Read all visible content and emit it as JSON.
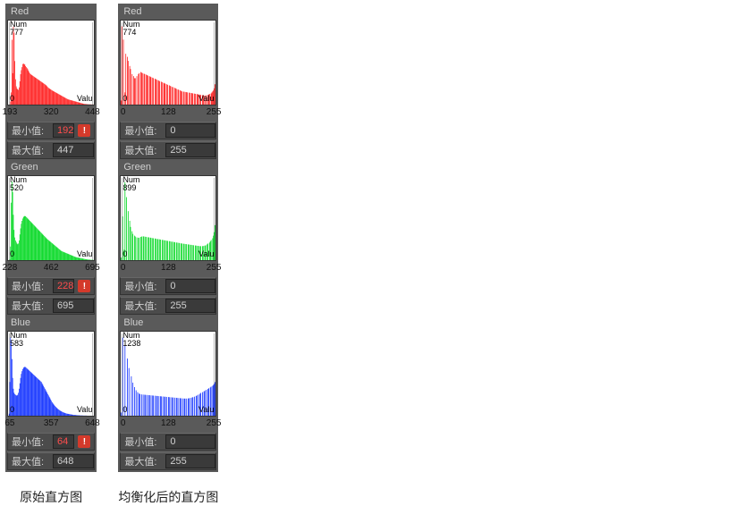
{
  "captions": {
    "left": "原始直方图",
    "right": "均衡化后的直方图"
  },
  "labels": {
    "min": "最小值:",
    "max": "最大值:",
    "yNum": "Num",
    "xValu": "Valu",
    "zero": "0"
  },
  "colors": {
    "panel_bg": "#5a5a5a",
    "row_bg": "#4b4b4b",
    "input_bg": "#3a3a3a",
    "text": "#d0d0d0",
    "warn_text": "#ff4d4d",
    "warn_icon": "#d43a2b",
    "hist_bg": "#ffffff",
    "red": "#ff1e1e",
    "green": "#00d820",
    "blue": "#1030ff"
  },
  "left": {
    "channels": [
      {
        "name": "Red",
        "color": "#ff1e1e",
        "yMax": 777,
        "ticks": [
          "193",
          "320",
          "448"
        ],
        "min": "192",
        "max": "447",
        "minWarn": true,
        "bars": [
          0,
          0,
          0,
          30,
          120,
          640,
          310,
          770,
          710,
          430,
          250,
          180,
          160,
          150,
          145,
          170,
          230,
          300,
          340,
          370,
          400,
          405,
          400,
          395,
          380,
          370,
          360,
          350,
          335,
          320,
          308,
          300,
          295,
          290,
          285,
          280,
          275,
          270,
          265,
          260,
          255,
          250,
          245,
          240,
          235,
          230,
          225,
          220,
          215,
          210,
          205,
          200,
          195,
          188,
          180,
          172,
          165,
          160,
          155,
          150,
          145,
          140,
          136,
          132,
          128,
          124,
          120,
          116,
          112,
          108,
          104,
          100,
          96,
          92,
          88,
          84,
          80,
          76,
          72,
          68,
          64,
          60,
          56,
          52,
          50,
          48,
          46,
          44,
          42,
          40,
          38,
          36,
          34,
          32,
          30,
          28,
          26,
          24,
          22,
          20,
          18,
          16,
          14,
          12,
          10,
          8,
          7,
          6,
          5,
          4,
          4,
          3,
          3,
          2,
          2,
          2,
          1,
          1,
          1,
          1
        ]
      },
      {
        "name": "Green",
        "color": "#00d820",
        "yMax": 520,
        "ticks": [
          "228",
          "462",
          "695"
        ],
        "min": "228",
        "max": "695",
        "minWarn": true,
        "bars": [
          0,
          0,
          5,
          90,
          380,
          520,
          450,
          300,
          200,
          150,
          130,
          120,
          110,
          105,
          110,
          130,
          170,
          210,
          240,
          260,
          275,
          285,
          290,
          292,
          290,
          285,
          280,
          275,
          270,
          265,
          260,
          255,
          250,
          245,
          240,
          235,
          230,
          225,
          220,
          215,
          210,
          205,
          200,
          195,
          190,
          185,
          180,
          175,
          170,
          165,
          160,
          155,
          150,
          145,
          140,
          136,
          132,
          128,
          124,
          120,
          116,
          112,
          108,
          104,
          100,
          96,
          92,
          88,
          84,
          80,
          76,
          72,
          68,
          64,
          60,
          58,
          56,
          54,
          52,
          50,
          48,
          46,
          44,
          42,
          40,
          38,
          36,
          34,
          32,
          30,
          28,
          26,
          24,
          22,
          20,
          19,
          18,
          17,
          16,
          15,
          14,
          13,
          12,
          11,
          10,
          9,
          8,
          7,
          6,
          5,
          5,
          4,
          4,
          3,
          3,
          2,
          2,
          2,
          1,
          1
        ]
      },
      {
        "name": "Blue",
        "color": "#1030ff",
        "yMax": 583,
        "ticks": [
          "65",
          "357",
          "648"
        ],
        "min": "64",
        "max": "648",
        "minWarn": true,
        "bars": [
          0,
          15,
          250,
          580,
          560,
          420,
          280,
          200,
          170,
          160,
          155,
          150,
          150,
          155,
          170,
          200,
          240,
          280,
          310,
          330,
          345,
          355,
          360,
          362,
          360,
          355,
          350,
          345,
          340,
          335,
          330,
          325,
          320,
          315,
          310,
          305,
          300,
          295,
          290,
          285,
          280,
          275,
          270,
          265,
          260,
          255,
          250,
          240,
          230,
          220,
          210,
          200,
          190,
          180,
          170,
          160,
          150,
          140,
          130,
          120,
          110,
          100,
          92,
          85,
          78,
          72,
          66,
          60,
          55,
          50,
          46,
          42,
          38,
          35,
          32,
          29,
          26,
          24,
          22,
          20,
          18,
          16,
          15,
          14,
          13,
          12,
          11,
          10,
          9,
          8,
          7,
          6,
          6,
          5,
          5,
          4,
          4,
          3,
          3,
          3,
          2,
          2,
          2,
          2,
          1,
          1,
          1,
          1,
          1,
          1,
          0,
          0,
          0,
          0,
          0,
          0,
          0,
          0,
          0,
          0
        ]
      }
    ]
  },
  "right": {
    "channels": [
      {
        "name": "Red",
        "color": "#ff1e1e",
        "yMax": 774,
        "ticks": [
          "0",
          "128",
          "255"
        ],
        "min": "0",
        "max": "255",
        "minWarn": false,
        "bars": [
          40,
          770,
          0,
          640,
          0,
          120,
          500,
          0,
          470,
          430,
          0,
          380,
          350,
          0,
          300,
          0,
          280,
          260,
          260,
          0,
          280,
          0,
          300,
          310,
          0,
          320,
          315,
          310,
          0,
          305,
          300,
          0,
          295,
          290,
          285,
          0,
          280,
          275,
          270,
          0,
          265,
          260,
          0,
          255,
          250,
          245,
          0,
          240,
          235,
          230,
          0,
          225,
          220,
          0,
          215,
          210,
          205,
          0,
          200,
          195,
          0,
          190,
          185,
          180,
          0,
          175,
          170,
          0,
          165,
          160,
          155,
          0,
          150,
          145,
          0,
          140,
          135,
          130,
          0,
          128,
          126,
          0,
          124,
          122,
          120,
          0,
          118,
          116,
          0,
          114,
          112,
          110,
          0,
          108,
          106,
          0,
          104,
          102,
          100,
          0,
          98,
          96,
          0,
          94,
          92,
          90,
          0,
          90,
          92,
          0,
          95,
          100,
          105,
          0,
          110,
          120,
          130,
          140,
          160,
          200
        ]
      },
      {
        "name": "Green",
        "color": "#00d820",
        "yMax": 899,
        "ticks": [
          "0",
          "128",
          "255"
        ],
        "min": "0",
        "max": "255",
        "minWarn": false,
        "bars": [
          30,
          0,
          500,
          0,
          120,
          890,
          0,
          720,
          0,
          560,
          0,
          450,
          380,
          0,
          330,
          300,
          0,
          280,
          270,
          0,
          260,
          0,
          255,
          258,
          0,
          265,
          270,
          0,
          272,
          270,
          0,
          268,
          265,
          0,
          262,
          260,
          0,
          258,
          255,
          0,
          252,
          250,
          0,
          248,
          245,
          0,
          242,
          240,
          0,
          238,
          235,
          0,
          232,
          230,
          0,
          228,
          225,
          0,
          222,
          220,
          0,
          218,
          215,
          0,
          212,
          210,
          0,
          208,
          205,
          0,
          202,
          200,
          0,
          198,
          195,
          0,
          192,
          190,
          0,
          188,
          186,
          0,
          184,
          182,
          0,
          180,
          178,
          0,
          176,
          174,
          0,
          172,
          170,
          0,
          168,
          166,
          0,
          164,
          162,
          0,
          160,
          160,
          0,
          160,
          162,
          0,
          165,
          170,
          0,
          180,
          190,
          0,
          200,
          215,
          230,
          0,
          250,
          280,
          320,
          400
        ]
      },
      {
        "name": "Blue",
        "color": "#1030ff",
        "yMax": 1238,
        "ticks": [
          "0",
          "128",
          "255"
        ],
        "min": "0",
        "max": "255",
        "minWarn": false,
        "bars": [
          50,
          0,
          1230,
          0,
          0,
          1100,
          0,
          0,
          900,
          0,
          750,
          0,
          0,
          620,
          0,
          520,
          0,
          450,
          0,
          400,
          0,
          370,
          0,
          350,
          340,
          0,
          335,
          0,
          332,
          0,
          330,
          328,
          0,
          326,
          0,
          324,
          322,
          0,
          320,
          0,
          318,
          316,
          0,
          314,
          0,
          312,
          310,
          0,
          308,
          0,
          306,
          304,
          0,
          302,
          0,
          300,
          298,
          0,
          296,
          0,
          294,
          292,
          0,
          290,
          0,
          288,
          286,
          0,
          284,
          0,
          282,
          280,
          0,
          278,
          0,
          276,
          274,
          0,
          272,
          0,
          270,
          270,
          0,
          270,
          0,
          272,
          275,
          0,
          280,
          0,
          286,
          292,
          0,
          300,
          0,
          310,
          320,
          0,
          332,
          0,
          345,
          358,
          0,
          370,
          0,
          382,
          395,
          0,
          408,
          0,
          420,
          432,
          0,
          445,
          458,
          0,
          470,
          485,
          500,
          530
        ]
      }
    ]
  }
}
